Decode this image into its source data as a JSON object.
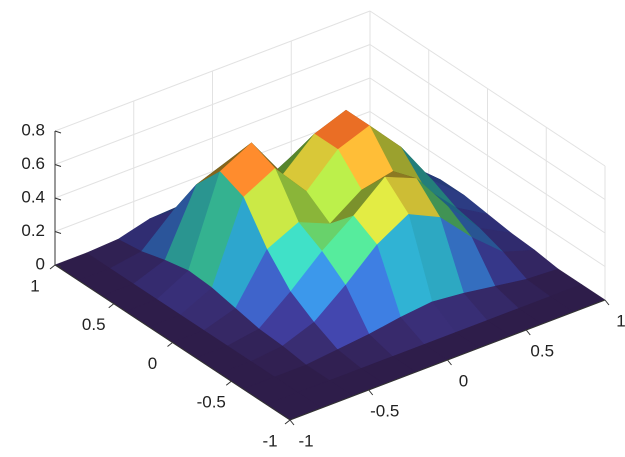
{
  "chart_data": {
    "type": "surface",
    "x": [
      -1,
      -0.8,
      -0.6,
      -0.4,
      -0.2,
      0,
      0.2,
      0.4,
      0.6,
      0.8,
      1
    ],
    "y": [
      -1,
      -0.8,
      -0.6,
      -0.4,
      -0.2,
      0,
      0.2,
      0.4,
      0.6,
      0.8,
      1
    ],
    "z": [
      [
        0,
        0,
        0,
        0,
        0,
        0,
        0,
        0,
        0,
        0,
        0
      ],
      [
        0,
        0,
        0,
        0,
        0,
        0,
        0,
        0,
        0,
        0,
        0
      ],
      [
        0,
        0,
        0,
        0.02,
        0.04,
        0.07,
        0.09,
        0.07,
        0.04,
        0.01,
        0
      ],
      [
        0,
        0,
        0.02,
        0.09,
        0.24,
        0.41,
        0.52,
        0.43,
        0.24,
        0.08,
        0.02
      ],
      [
        0,
        0,
        0.03,
        0.18,
        0.35,
        0.49,
        0.65,
        0.57,
        0.33,
        0.13,
        0.03
      ],
      [
        0,
        0,
        0.06,
        0.34,
        0.43,
        0.35,
        0.48,
        0.52,
        0.35,
        0.16,
        0.05
      ],
      [
        0,
        0,
        0.09,
        0.56,
        0.66,
        0.45,
        0.63,
        0.7,
        0.5,
        0.23,
        0.07
      ],
      [
        0,
        0,
        0.1,
        0.62,
        0.72,
        0.46,
        0.63,
        0.7,
        0.5,
        0.23,
        0.07
      ],
      [
        0,
        0,
        0.07,
        0.45,
        0.52,
        0.3,
        0.4,
        0.45,
        0.32,
        0.15,
        0.04
      ],
      [
        0,
        0,
        0.03,
        0.2,
        0.23,
        0.13,
        0.17,
        0.19,
        0.13,
        0.06,
        0.02
      ],
      [
        0,
        0,
        0.01,
        0.06,
        0.07,
        0.04,
        0.04,
        0.05,
        0.04,
        0.02,
        0.01
      ]
    ],
    "xlim": [
      -1,
      1
    ],
    "ylim": [
      -1,
      1
    ],
    "zlim": [
      0,
      0.8
    ],
    "xticks": [
      -1,
      -0.5,
      0,
      0.5,
      1
    ],
    "yticks": [
      -1,
      -0.5,
      0,
      0.5,
      1
    ],
    "zticks": [
      0,
      0.2,
      0.4,
      0.6,
      0.8
    ],
    "grid": true,
    "colormap": [
      "#2e1d4a",
      "#3b3a94",
      "#3d6fd6",
      "#2fb2d9",
      "#3fd6a0",
      "#90e04a",
      "#d9d23a",
      "#f38b2b",
      "#c6421a",
      "#7c1a0b"
    ]
  }
}
